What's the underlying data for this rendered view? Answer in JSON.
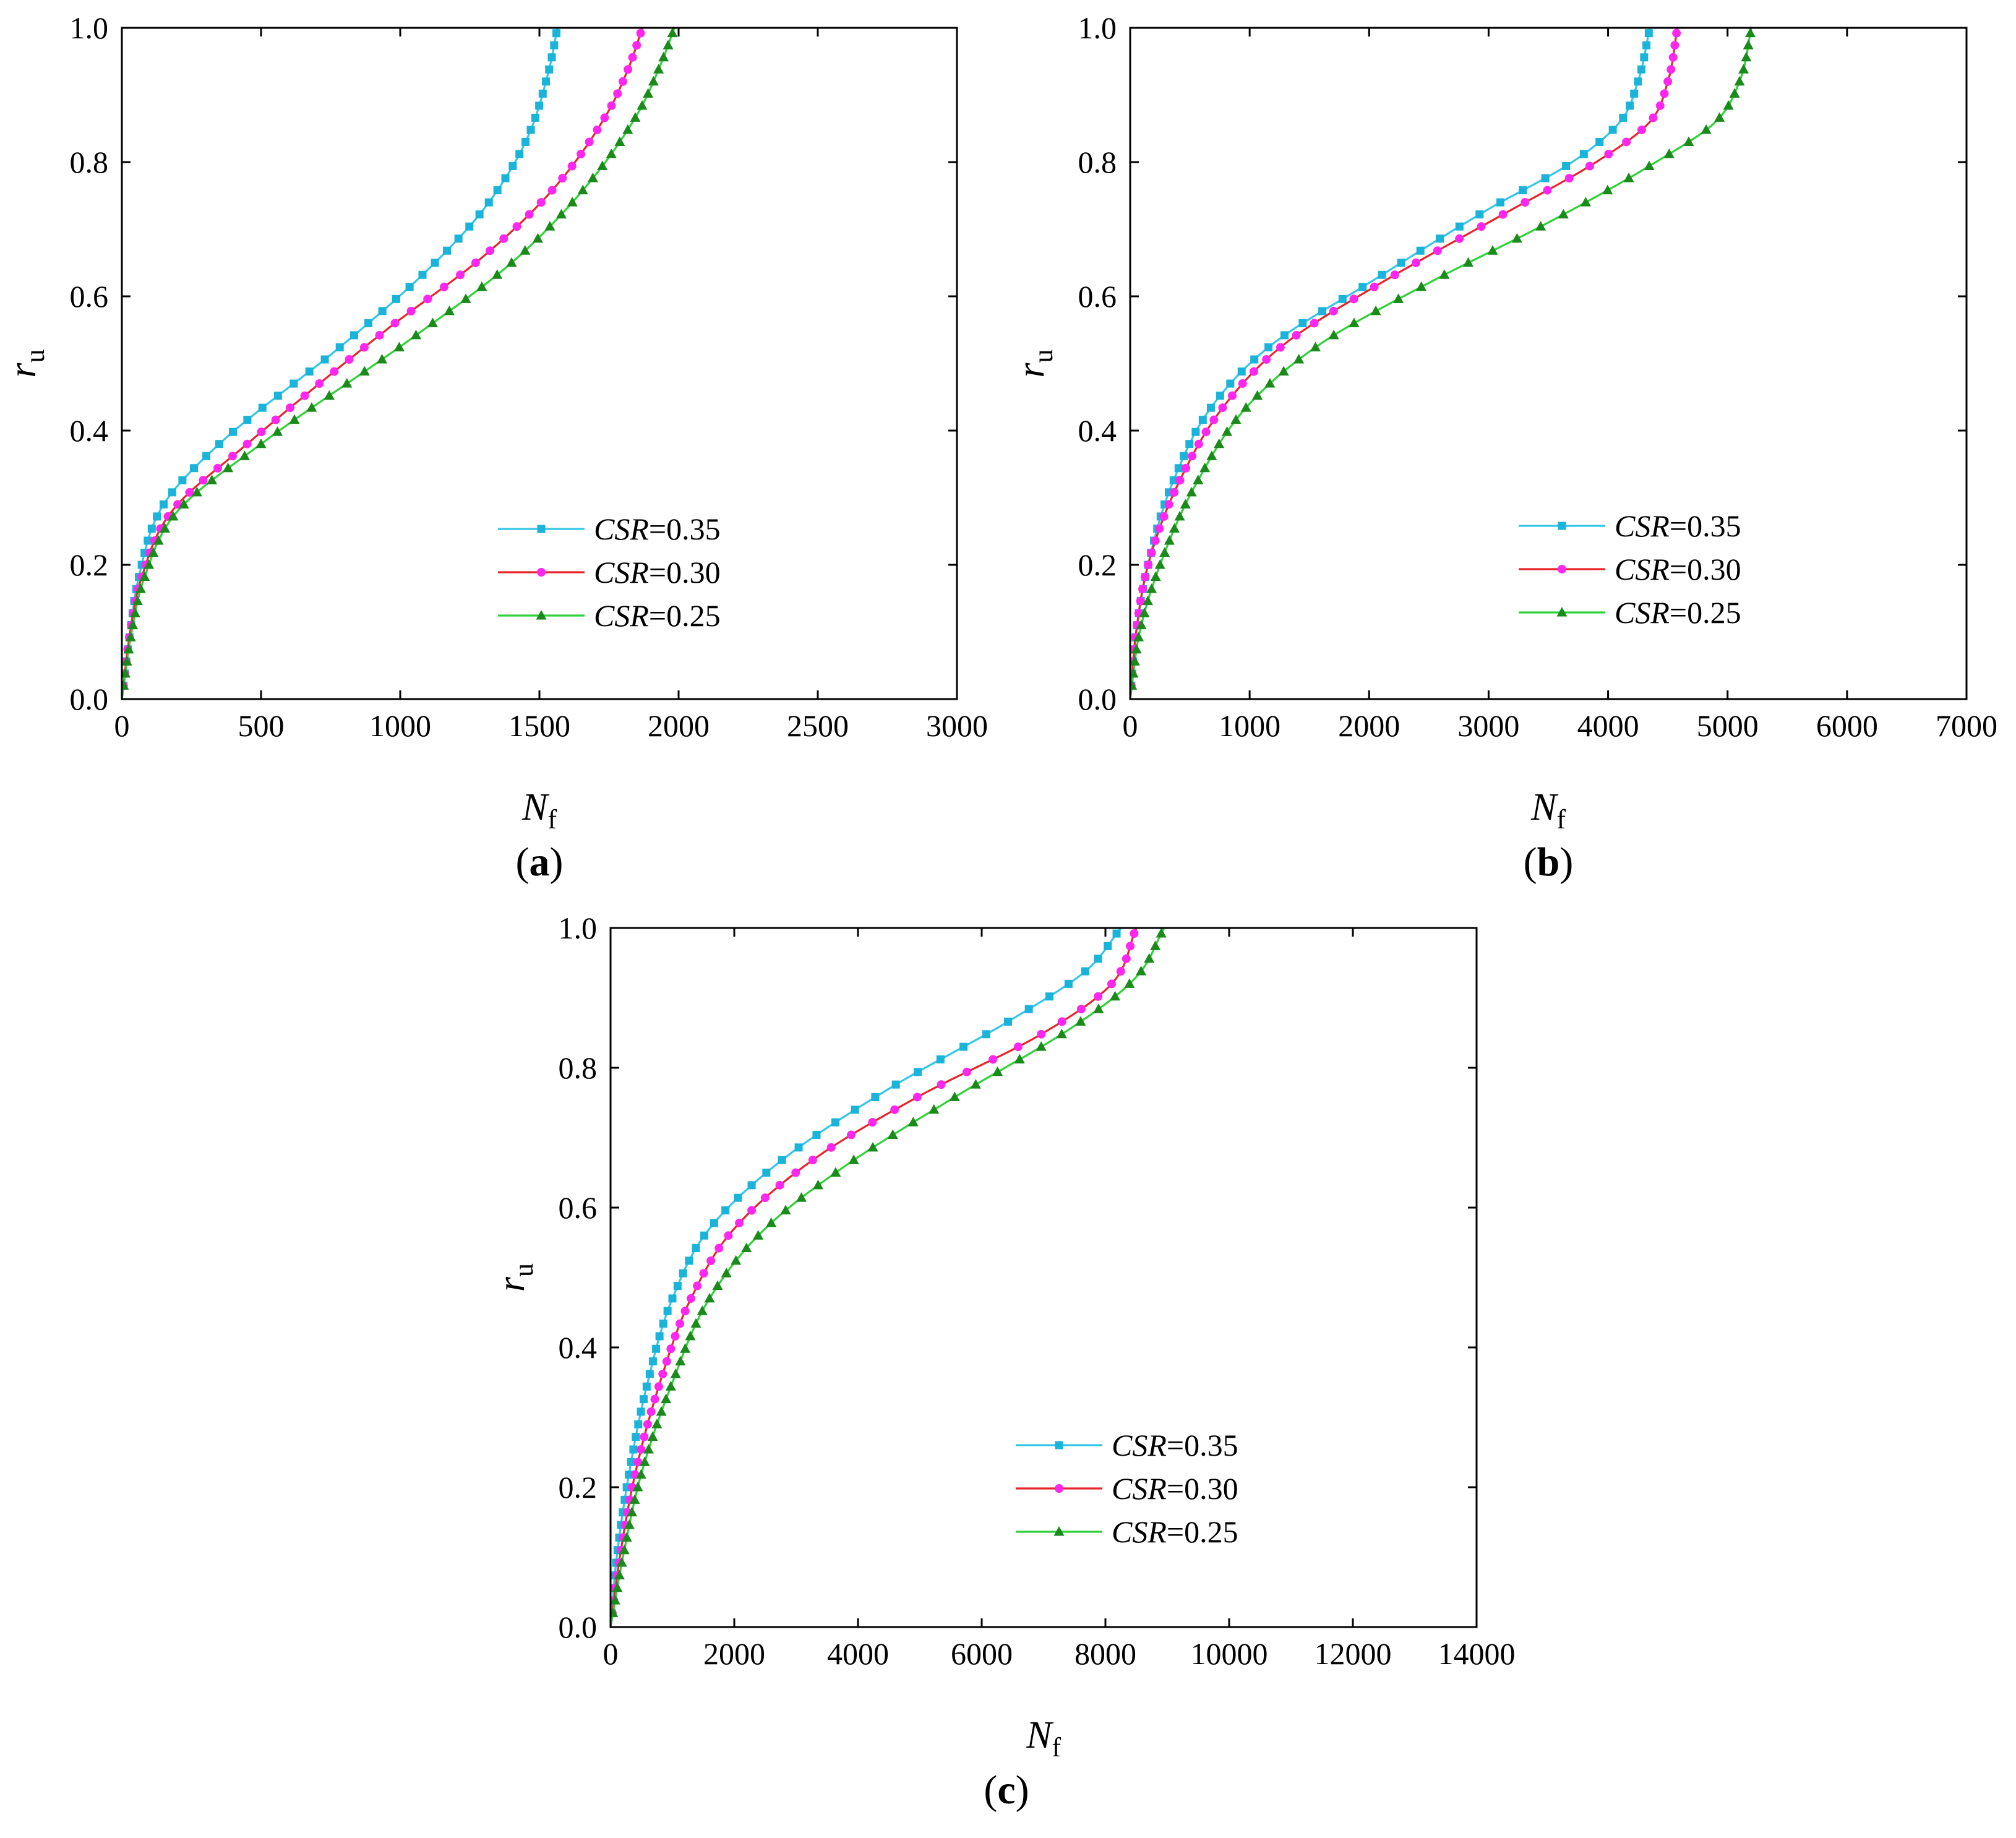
{
  "figure": {
    "background": "#ffffff"
  },
  "chart_data": [
    {
      "type": "line",
      "panel_label": "a",
      "xlabel": "N",
      "xlabel_sub": "f",
      "ylabel": "r",
      "ylabel_sub": "u",
      "xlim": [
        0,
        3000
      ],
      "ylim": [
        0,
        1.0
      ],
      "xticks": [
        0,
        500,
        1000,
        1500,
        2000,
        2500,
        3000
      ],
      "xtick_labels": [
        "0",
        "500",
        "1000",
        "1500",
        "2000",
        "2500",
        "3000"
      ],
      "yticks": [
        0,
        0.2,
        0.4,
        0.6,
        0.8,
        1.0
      ],
      "ytick_labels": [
        "0.0",
        "0.2",
        "0.4",
        "0.6",
        "0.8",
        "1.0"
      ],
      "legend_position": "lower-right",
      "series": [
        {
          "name_prefix": "CSR",
          "name_value": "=0.35",
          "color": "#35c6e6",
          "marker": "square",
          "marker_color": "#1ab3d9",
          "knots": [
            [
              0,
              0
            ],
            [
              30,
              0.1
            ],
            [
              60,
              0.18
            ],
            [
              150,
              0.29
            ],
            [
              350,
              0.38
            ],
            [
              800,
              0.53
            ],
            [
              1100,
              0.64
            ],
            [
              1300,
              0.73
            ],
            [
              1450,
              0.83
            ],
            [
              1530,
              0.93
            ],
            [
              1565,
              1.0
            ]
          ]
        },
        {
          "name_prefix": "CSR",
          "name_value": "=0.30",
          "color": "#e8242b",
          "marker": "circle",
          "marker_color": "#ff27ef",
          "knots": [
            [
              0,
              0
            ],
            [
              30,
              0.1
            ],
            [
              70,
              0.18
            ],
            [
              180,
              0.28
            ],
            [
              450,
              0.38
            ],
            [
              950,
              0.55
            ],
            [
              1300,
              0.66
            ],
            [
              1550,
              0.76
            ],
            [
              1740,
              0.87
            ],
            [
              1820,
              0.94
            ],
            [
              1870,
              1.0
            ]
          ]
        },
        {
          "name_prefix": "CSR",
          "name_value": "=0.25",
          "color": "#30d13a",
          "marker": "triangle",
          "marker_color": "#1a8a1a",
          "knots": [
            [
              0,
              0
            ],
            [
              35,
              0.1
            ],
            [
              80,
              0.18
            ],
            [
              200,
              0.28
            ],
            [
              500,
              0.38
            ],
            [
              1050,
              0.54
            ],
            [
              1400,
              0.65
            ],
            [
              1660,
              0.76
            ],
            [
              1850,
              0.87
            ],
            [
              1940,
              0.95
            ],
            [
              1985,
              1.0
            ]
          ]
        }
      ]
    },
    {
      "type": "line",
      "panel_label": "b",
      "xlabel": "N",
      "xlabel_sub": "f",
      "ylabel": "r",
      "ylabel_sub": "u",
      "xlim": [
        0,
        7000
      ],
      "ylim": [
        0,
        1.0
      ],
      "xticks": [
        0,
        1000,
        2000,
        3000,
        4000,
        5000,
        6000,
        7000
      ],
      "xtick_labels": [
        "0",
        "1000",
        "2000",
        "3000",
        "4000",
        "5000",
        "6000",
        "7000"
      ],
      "yticks": [
        0,
        0.2,
        0.4,
        0.6,
        0.8,
        1.0
      ],
      "ytick_labels": [
        "0.0",
        "0.2",
        "0.4",
        "0.6",
        "0.8",
        "1.0"
      ],
      "legend_position": "lower-right",
      "series": [
        {
          "name_prefix": "CSR",
          "name_value": "=0.35",
          "color": "#35c6e6",
          "marker": "square",
          "marker_color": "#1ab3d9",
          "knots": [
            [
              0,
              0
            ],
            [
              50,
              0.1
            ],
            [
              150,
              0.2
            ],
            [
              350,
              0.32
            ],
            [
              700,
              0.44
            ],
            [
              1200,
              0.53
            ],
            [
              2000,
              0.62
            ],
            [
              3000,
              0.73
            ],
            [
              3700,
              0.8
            ],
            [
              4100,
              0.86
            ],
            [
              4250,
              0.92
            ],
            [
              4350,
              1.0
            ]
          ]
        },
        {
          "name_prefix": "CSR",
          "name_value": "=0.30",
          "color": "#e8242b",
          "marker": "circle",
          "marker_color": "#ff27ef",
          "knots": [
            [
              0,
              0
            ],
            [
              50,
              0.1
            ],
            [
              150,
              0.2
            ],
            [
              400,
              0.32
            ],
            [
              800,
              0.44
            ],
            [
              1300,
              0.53
            ],
            [
              2100,
              0.62
            ],
            [
              3100,
              0.72
            ],
            [
              3900,
              0.8
            ],
            [
              4350,
              0.86
            ],
            [
              4500,
              0.92
            ],
            [
              4580,
              1.0
            ]
          ]
        },
        {
          "name_prefix": "CSR",
          "name_value": "=0.25",
          "color": "#30d13a",
          "marker": "triangle",
          "marker_color": "#1a8a1a",
          "knots": [
            [
              0,
              0
            ],
            [
              80,
              0.1
            ],
            [
              250,
              0.2
            ],
            [
              550,
              0.32
            ],
            [
              1000,
              0.44
            ],
            [
              1600,
              0.53
            ],
            [
              2500,
              0.62
            ],
            [
              3500,
              0.71
            ],
            [
              4400,
              0.8
            ],
            [
              4900,
              0.86
            ],
            [
              5100,
              0.92
            ],
            [
              5200,
              1.0
            ]
          ]
        }
      ]
    },
    {
      "type": "line",
      "panel_label": "c",
      "xlabel": "N",
      "xlabel_sub": "f",
      "ylabel": "r",
      "ylabel_sub": "u",
      "xlim": [
        0,
        14000
      ],
      "ylim": [
        0,
        1.0
      ],
      "xticks": [
        0,
        2000,
        4000,
        6000,
        8000,
        10000,
        12000,
        14000
      ],
      "xtick_labels": [
        "0",
        "2000",
        "4000",
        "6000",
        "8000",
        "10000",
        "12000",
        "14000"
      ],
      "yticks": [
        0,
        0.2,
        0.4,
        0.6,
        0.8,
        1.0
      ],
      "ytick_labels": [
        "0.0",
        "0.2",
        "0.4",
        "0.6",
        "0.8",
        "1.0"
      ],
      "legend_position": "lower-right",
      "series": [
        {
          "name_prefix": "CSR",
          "name_value": "=0.35",
          "color": "#35c6e6",
          "marker": "square",
          "marker_color": "#1ab3d9",
          "knots": [
            [
              0,
              0
            ],
            [
              100,
              0.1
            ],
            [
              300,
              0.22
            ],
            [
              600,
              0.35
            ],
            [
              1000,
              0.47
            ],
            [
              1600,
              0.57
            ],
            [
              2800,
              0.67
            ],
            [
              4500,
              0.77
            ],
            [
              6500,
              0.87
            ],
            [
              7700,
              0.94
            ],
            [
              8250,
              1.0
            ]
          ]
        },
        {
          "name_prefix": "CSR",
          "name_value": "=0.30",
          "color": "#e8242b",
          "marker": "circle",
          "marker_color": "#ff27ef",
          "knots": [
            [
              0,
              0
            ],
            [
              150,
              0.1
            ],
            [
              400,
              0.22
            ],
            [
              800,
              0.35
            ],
            [
              1300,
              0.47
            ],
            [
              2000,
              0.57
            ],
            [
              3300,
              0.67
            ],
            [
              5000,
              0.76
            ],
            [
              7000,
              0.85
            ],
            [
              8100,
              0.92
            ],
            [
              8500,
              1.0
            ]
          ]
        },
        {
          "name_prefix": "CSR",
          "name_value": "=0.25",
          "color": "#30d13a",
          "marker": "triangle",
          "marker_color": "#1a8a1a",
          "knots": [
            [
              0,
              0
            ],
            [
              200,
              0.1
            ],
            [
              500,
              0.22
            ],
            [
              1000,
              0.35
            ],
            [
              1600,
              0.47
            ],
            [
              2500,
              0.57
            ],
            [
              3800,
              0.66
            ],
            [
              5600,
              0.76
            ],
            [
              7500,
              0.86
            ],
            [
              8500,
              0.93
            ],
            [
              8950,
              1.0
            ]
          ]
        }
      ]
    }
  ]
}
